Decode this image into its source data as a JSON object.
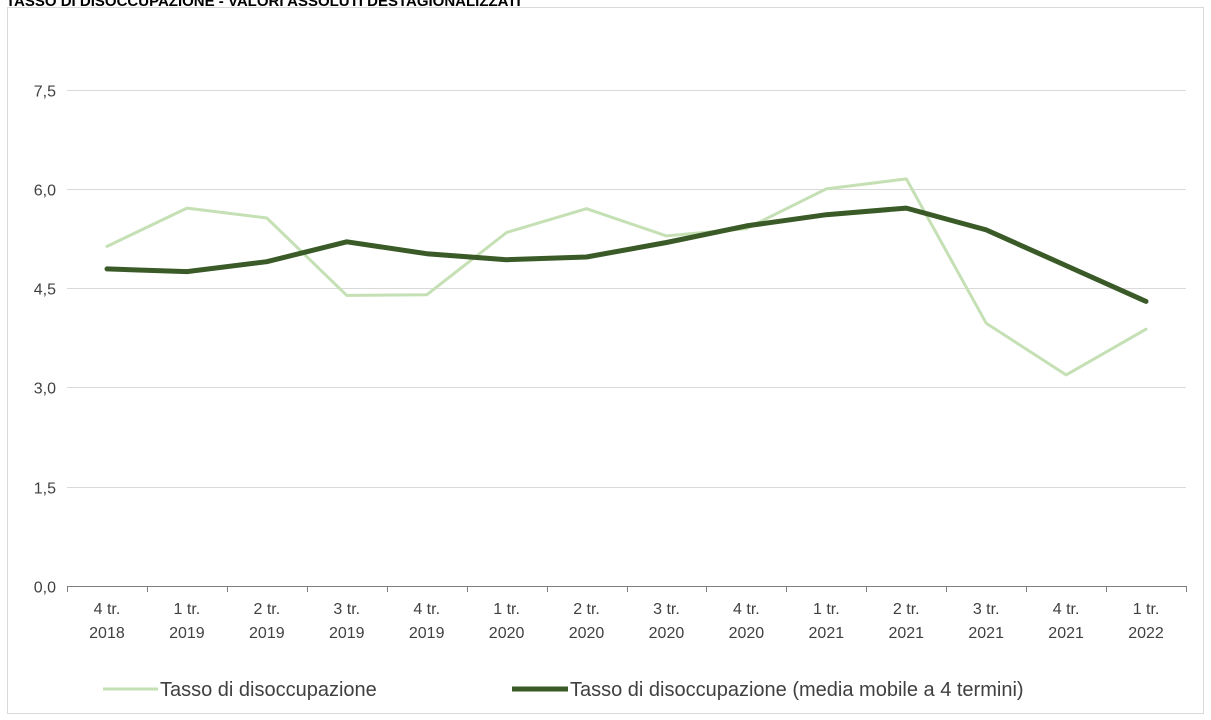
{
  "chart_data": {
    "type": "line",
    "title": "TASSO DI DISOCCUPAZIONE - VALORI ASSOLUTI DESTAGIONALIZZATI",
    "xlabel": "",
    "ylabel": "",
    "categories": [
      [
        "4 tr.",
        "2018"
      ],
      [
        "1 tr.",
        "2019"
      ],
      [
        "2 tr.",
        "2019"
      ],
      [
        "3 tr.",
        "2019"
      ],
      [
        "4 tr.",
        "2019"
      ],
      [
        "1 tr.",
        "2020"
      ],
      [
        "2 tr.",
        "2020"
      ],
      [
        "3 tr.",
        "2020"
      ],
      [
        "4 tr.",
        "2020"
      ],
      [
        "1 tr.",
        "2021"
      ],
      [
        "2 tr.",
        "2021"
      ],
      [
        "3 tr.",
        "2021"
      ],
      [
        "4 tr.",
        "2021"
      ],
      [
        "1 tr.",
        "2022"
      ]
    ],
    "ylim": [
      0,
      8.4
    ],
    "yticks": [
      0,
      1.5,
      3.0,
      4.5,
      6.0,
      7.5
    ],
    "ytick_labels": [
      "0,0",
      "1,5",
      "3,0",
      "4,5",
      "6,0",
      "7,5"
    ],
    "grid": true,
    "legend_position": "bottom",
    "series": [
      {
        "name": "Tasso di disoccupazione",
        "color": "#c5e0b4",
        "values": [
          5.13,
          5.71,
          5.56,
          4.39,
          4.4,
          5.34,
          5.7,
          5.29,
          5.4,
          6.0,
          6.15,
          3.97,
          3.19,
          3.88
        ]
      },
      {
        "name": "Tasso di disoccupazione (media mobile a 4 termini)",
        "color": "#3a5a27",
        "values": [
          4.79,
          4.75,
          4.9,
          5.2,
          5.02,
          4.93,
          4.97,
          5.19,
          5.44,
          5.61,
          5.71,
          5.38,
          4.84,
          4.3
        ]
      }
    ]
  }
}
